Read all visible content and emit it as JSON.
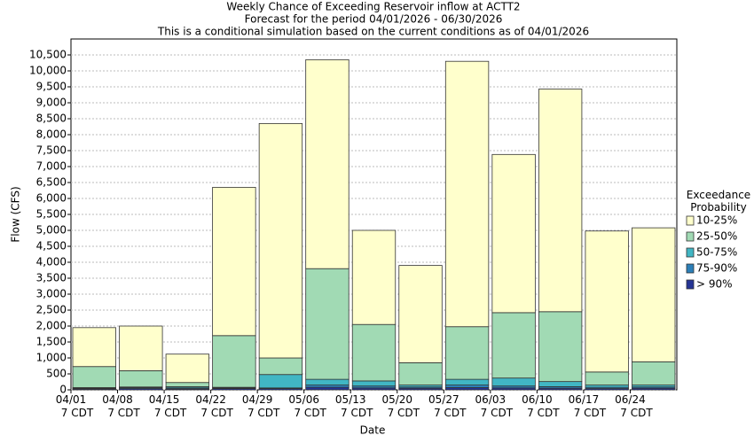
{
  "chart_data": {
    "type": "bar",
    "stacked": true,
    "title": "Weekly Chance of Exceeding Reservoir inflow at ACTT2",
    "subtitle": "Forecast for the period 04/01/2026 - 06/30/2026",
    "note": "This is a conditional simulation based on the current conditions as of 04/01/2026",
    "x_label": "Date",
    "y_label": "Flow (CFS)",
    "legend_title": "Exceedance Probability",
    "legend_position": "right",
    "categories": [
      "04/01 7 CDT",
      "04/08 7 CDT",
      "04/15 7 CDT",
      "04/22 7 CDT",
      "04/29 7 CDT",
      "05/06 7 CDT",
      "05/13 7 CDT",
      "05/20 7 CDT",
      "05/27 7 CDT",
      "06/03 7 CDT",
      "06/10 7 CDT",
      "06/17 7 CDT",
      "06/24 7 CDT"
    ],
    "series": [
      {
        "name": "> 90%",
        "color": "#253494",
        "values": [
          30,
          40,
          30,
          40,
          40,
          80,
          60,
          50,
          70,
          60,
          50,
          40,
          50
        ]
      },
      {
        "name": "75-90%",
        "color": "#2c7fb8",
        "values": [
          20,
          30,
          30,
          20,
          20,
          70,
          60,
          40,
          80,
          60,
          50,
          40,
          40
        ]
      },
      {
        "name": "50-75%",
        "color": "#41b6c4",
        "values": [
          20,
          20,
          40,
          20,
          420,
          180,
          160,
          60,
          180,
          250,
          160,
          70,
          60
        ]
      },
      {
        "name": "25-50%",
        "color": "#a1dab4",
        "values": [
          660,
          510,
          130,
          1620,
          520,
          3470,
          1770,
          700,
          1650,
          2050,
          2190,
          410,
          730
        ]
      },
      {
        "name": "10-25%",
        "color": "#ffffcc",
        "values": [
          1220,
          1400,
          890,
          4650,
          7350,
          6550,
          2950,
          3050,
          8320,
          4960,
          6980,
          4420,
          4200
        ]
      }
    ],
    "ylim": [
      0,
      11000
    ],
    "yticks": [
      0,
      500,
      {
        "value": 1000,
        "label": "1,000"
      },
      {
        "value": 1500,
        "label": "1,500"
      },
      {
        "value": 2000,
        "label": "2,000"
      },
      {
        "value": 2500,
        "label": "2,500"
      },
      {
        "value": 3000,
        "label": "3,000"
      },
      {
        "value": 3500,
        "label": "3,500"
      },
      {
        "value": 4000,
        "label": "4,000"
      },
      {
        "value": 4500,
        "label": "4,500"
      },
      {
        "value": 5000,
        "label": "5,000"
      },
      {
        "value": 5500,
        "label": "5,500"
      },
      {
        "value": 6000,
        "label": "6,000"
      },
      {
        "value": 6500,
        "label": "6,500"
      },
      {
        "value": 7000,
        "label": "7,000"
      },
      {
        "value": 7500,
        "label": "7,500"
      },
      {
        "value": 8000,
        "label": "8,000"
      },
      {
        "value": 8500,
        "label": "8,500"
      },
      {
        "value": 9000,
        "label": "9,000"
      },
      {
        "value": 9500,
        "label": "9,500"
      },
      {
        "value": 10000,
        "label": "10,000"
      },
      {
        "value": 10500,
        "label": "10,500"
      }
    ],
    "grid": true
  }
}
